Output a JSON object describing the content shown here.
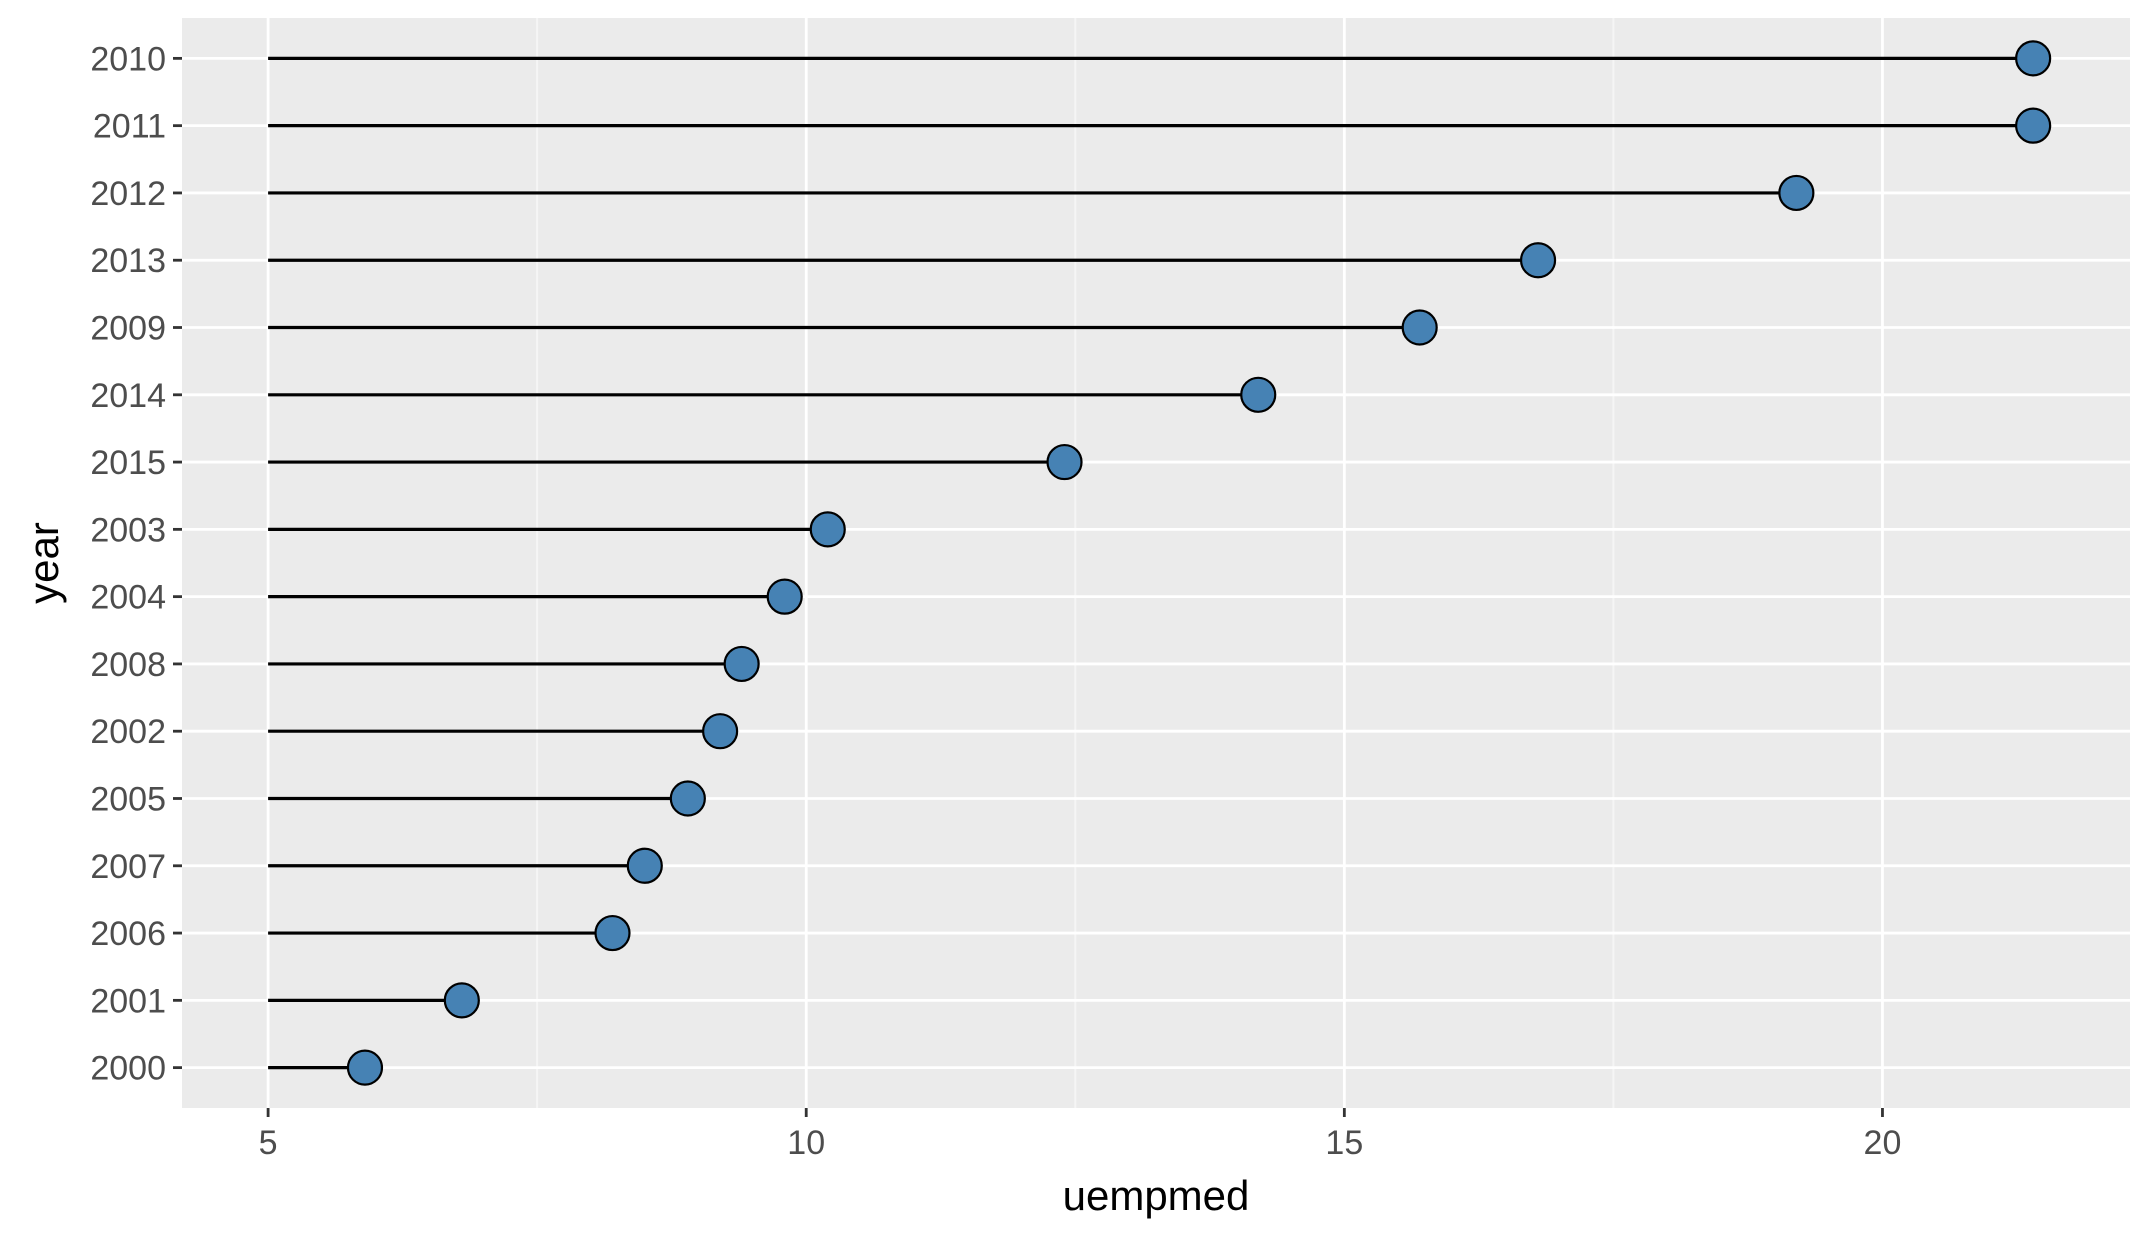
{
  "chart_data": {
    "type": "lollipop",
    "xlabel": "uempmed",
    "ylabel": "year",
    "xlim": [
      4.2,
      22.3
    ],
    "x_ticks": [
      5,
      10,
      15,
      20
    ],
    "baseline": 5,
    "grid": true,
    "colors": {
      "panel_background": "#ebebeb",
      "grid_major": "#ffffff",
      "grid_minor": "#f5f5f5",
      "stem": "#000000",
      "point_fill": "#4682b4",
      "point_stroke": "#000000"
    },
    "categories": [
      "2010",
      "2011",
      "2012",
      "2013",
      "2009",
      "2014",
      "2015",
      "2003",
      "2004",
      "2008",
      "2002",
      "2005",
      "2007",
      "2006",
      "2001",
      "2000"
    ],
    "values": [
      21.4,
      21.4,
      19.2,
      16.8,
      15.7,
      14.2,
      12.4,
      10.2,
      9.8,
      9.4,
      9.2,
      8.9,
      8.5,
      8.2,
      6.8,
      5.9
    ]
  }
}
